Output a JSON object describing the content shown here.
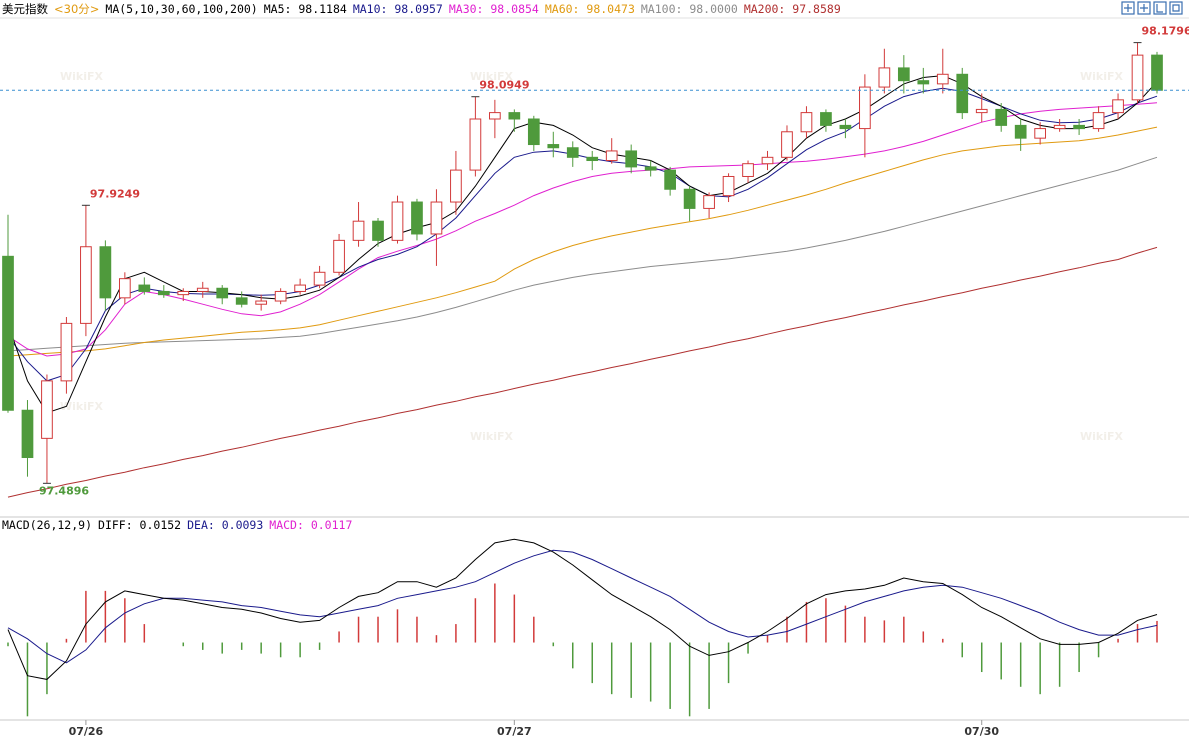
{
  "chart_data": {
    "type": "candlestick",
    "title": "美元指数",
    "period": "<30分>",
    "ma_params": "MA(5,10,30,60,100,200)",
    "macd_params": "MACD(26,12,9)",
    "watermark": "WikiFX",
    "categories": [
      null,
      null,
      null,
      null,
      "07/26",
      null,
      null,
      null,
      null,
      null,
      null,
      null,
      null,
      null,
      null,
      null,
      null,
      null,
      null,
      null,
      null,
      null,
      null,
      null,
      null,
      null,
      "07/27",
      null,
      null,
      null,
      null,
      null,
      null,
      null,
      null,
      null,
      null,
      null,
      null,
      null,
      null,
      null,
      null,
      null,
      null,
      null,
      null,
      null,
      null,
      null,
      "07/30",
      null,
      null,
      null,
      null,
      null,
      null,
      null,
      null,
      null
    ],
    "ylim": [
      97.44,
      98.215
    ],
    "up_color": "#d23a3a",
    "down_color": "#4f9a3c",
    "candles": {
      "open": [
        97.845,
        97.604,
        97.56,
        97.65,
        97.74,
        97.86,
        97.78,
        97.8,
        97.79,
        97.785,
        97.79,
        97.795,
        97.78,
        97.77,
        97.775,
        97.79,
        97.8,
        97.82,
        97.87,
        97.9,
        97.87,
        97.93,
        97.88,
        97.93,
        97.98,
        98.06,
        98.07,
        98.06,
        98.02,
        98.015,
        98.0,
        97.995,
        98.01,
        97.985,
        97.98,
        97.95,
        97.92,
        97.94,
        97.97,
        97.99,
        98.0,
        98.04,
        98.07,
        98.05,
        98.045,
        98.11,
        98.14,
        98.12,
        98.115,
        98.13,
        98.07,
        98.075,
        98.05,
        98.03,
        98.045,
        98.05,
        98.045,
        98.07,
        98.09,
        98.16
      ],
      "high": [
        97.91,
        97.62,
        97.66,
        97.75,
        97.9249,
        97.87,
        97.82,
        97.812,
        97.8,
        97.795,
        97.805,
        97.8,
        97.79,
        97.785,
        97.795,
        97.81,
        97.83,
        97.88,
        97.93,
        97.905,
        97.94,
        97.935,
        97.95,
        98.01,
        98.0949,
        98.09,
        98.075,
        98.065,
        98.04,
        98.025,
        98.01,
        98.03,
        98.02,
        97.995,
        97.985,
        97.955,
        97.945,
        97.975,
        97.995,
        98.01,
        98.05,
        98.08,
        98.075,
        98.06,
        98.13,
        98.17,
        98.16,
        98.14,
        98.17,
        98.14,
        98.1,
        98.085,
        98.06,
        98.055,
        98.06,
        98.06,
        98.08,
        98.1,
        98.1796,
        98.165
      ],
      "low": [
        97.6,
        97.5,
        97.4896,
        97.63,
        97.72,
        97.76,
        97.77,
        97.785,
        97.78,
        97.775,
        97.78,
        97.77,
        97.765,
        97.76,
        97.77,
        97.785,
        97.795,
        97.815,
        97.86,
        97.86,
        97.865,
        97.87,
        97.83,
        97.91,
        97.97,
        98.03,
        98.04,
        98.01,
        98.0,
        97.985,
        97.98,
        97.99,
        97.975,
        97.97,
        97.94,
        97.9,
        97.905,
        97.93,
        97.96,
        97.98,
        97.995,
        98.03,
        98.04,
        98.03,
        98.0,
        98.1,
        98.1,
        98.1,
        98.1,
        98.06,
        98.055,
        98.04,
        98.01,
        98.02,
        98.04,
        98.035,
        98.04,
        98.06,
        98.085,
        98.1
      ],
      "close": [
        97.604,
        97.53,
        97.65,
        97.74,
        97.86,
        97.78,
        97.81,
        97.79,
        97.785,
        97.79,
        97.795,
        97.78,
        97.77,
        97.775,
        97.79,
        97.8,
        97.82,
        97.87,
        97.9,
        97.87,
        97.93,
        97.88,
        97.93,
        97.98,
        98.06,
        98.07,
        98.06,
        98.02,
        98.015,
        98.0,
        97.995,
        98.01,
        97.985,
        97.98,
        97.95,
        97.92,
        97.94,
        97.97,
        97.99,
        98.0,
        98.04,
        98.07,
        98.05,
        98.045,
        98.11,
        98.14,
        98.12,
        98.115,
        98.13,
        98.07,
        98.075,
        98.05,
        98.03,
        98.045,
        98.05,
        98.045,
        98.07,
        98.09,
        98.16,
        98.105
      ],
      "high_labels": [
        null,
        null,
        null,
        null,
        "97.9249",
        null,
        null,
        null,
        null,
        null,
        null,
        null,
        null,
        null,
        null,
        null,
        null,
        null,
        null,
        null,
        null,
        null,
        null,
        null,
        "98.0949",
        null,
        null,
        null,
        null,
        null,
        null,
        null,
        null,
        null,
        null,
        null,
        null,
        null,
        null,
        null,
        null,
        null,
        null,
        null,
        null,
        null,
        null,
        null,
        null,
        null,
        null,
        null,
        null,
        null,
        null,
        null,
        null,
        null,
        "98.1796",
        null
      ],
      "low_labels": [
        null,
        null,
        "97.4896",
        null,
        null,
        null,
        null,
        null,
        null,
        null,
        null,
        null,
        null,
        null,
        null,
        null,
        null,
        null,
        null,
        null,
        null,
        null,
        null,
        null,
        null,
        null,
        null,
        null,
        null,
        null,
        null,
        null,
        null,
        null,
        null,
        null,
        null,
        null,
        null,
        null,
        null,
        null,
        null,
        null,
        null,
        null,
        null,
        null,
        null,
        null,
        null,
        null,
        null,
        null,
        null,
        null,
        null,
        null,
        null,
        null
      ]
    },
    "series": [
      {
        "name": "MA5: 98.1184",
        "color": "#000000",
        "values": [
          97.74,
          97.65,
          97.6,
          97.61,
          97.68,
          97.75,
          97.81,
          97.82,
          97.805,
          97.79,
          97.79,
          97.788,
          97.785,
          97.78,
          97.778,
          97.783,
          97.792,
          97.812,
          97.84,
          97.865,
          97.88,
          97.89,
          97.898,
          97.916,
          97.955,
          98.0,
          98.045,
          98.055,
          98.05,
          98.035,
          98.015,
          98.005,
          98.0,
          97.995,
          97.98,
          97.955,
          97.94,
          97.945,
          97.96,
          97.975,
          98.0,
          98.03,
          98.05,
          98.06,
          98.075,
          98.095,
          98.115,
          98.125,
          98.128,
          98.115,
          98.095,
          98.08,
          98.06,
          98.05,
          98.045,
          98.045,
          98.05,
          98.06,
          98.085,
          98.1184
        ]
      },
      {
        "name": "MA10: 98.0957",
        "color": "#1a1a8c",
        "values": [
          97.72,
          97.68,
          97.65,
          97.66,
          97.7,
          97.76,
          97.785,
          97.795,
          97.79,
          97.787,
          97.786,
          97.786,
          97.785,
          97.784,
          97.785,
          97.79,
          97.8,
          97.812,
          97.828,
          97.84,
          97.848,
          97.86,
          97.88,
          97.905,
          97.94,
          97.975,
          98.0,
          98.008,
          98.01,
          98.005,
          97.998,
          97.993,
          97.99,
          97.985,
          97.975,
          97.955,
          97.94,
          97.938,
          97.95,
          97.968,
          97.99,
          98.012,
          98.028,
          98.04,
          98.06,
          98.08,
          98.095,
          98.103,
          98.108,
          98.103,
          98.092,
          98.08,
          98.068,
          98.058,
          98.054,
          98.055,
          98.06,
          98.07,
          98.085,
          98.0957
        ]
      },
      {
        "name": "MA30: 98.0854",
        "color": "#e020d0",
        "values": [
          97.72,
          97.7,
          97.689,
          97.692,
          97.7,
          97.73,
          97.77,
          97.79,
          97.785,
          97.778,
          97.77,
          97.762,
          97.755,
          97.752,
          97.758,
          97.77,
          97.785,
          97.805,
          97.825,
          97.843,
          97.853,
          97.862,
          97.872,
          97.885,
          97.9,
          97.912,
          97.925,
          97.94,
          97.952,
          97.962,
          97.97,
          97.975,
          97.978,
          97.98,
          97.982,
          97.985,
          97.986,
          97.987,
          97.988,
          97.99,
          97.992,
          97.994,
          97.997,
          98.001,
          98.005,
          98.01,
          98.017,
          98.025,
          98.035,
          98.045,
          98.055,
          98.062,
          98.068,
          98.072,
          98.075,
          98.077,
          98.079,
          98.081,
          98.083,
          98.0854
        ]
      },
      {
        "name": "MA60: 98.0473",
        "color": "#e09a10",
        "values": [
          97.689,
          97.691,
          97.693,
          97.695,
          97.697,
          97.7,
          97.705,
          97.71,
          97.714,
          97.717,
          97.72,
          97.723,
          97.726,
          97.728,
          97.73,
          97.733,
          97.738,
          97.745,
          97.752,
          97.759,
          97.766,
          97.773,
          97.78,
          97.788,
          97.797,
          97.806,
          97.825,
          97.84,
          97.852,
          97.862,
          97.87,
          97.877,
          97.883,
          97.889,
          97.894,
          97.899,
          97.904,
          97.91,
          97.917,
          97.925,
          97.933,
          97.941,
          97.95,
          97.96,
          97.969,
          97.978,
          97.987,
          97.996,
          98.004,
          98.01,
          98.014,
          98.018,
          98.02,
          98.022,
          98.024,
          98.026,
          98.03,
          98.035,
          98.041,
          98.0473
        ]
      },
      {
        "name": "MA100: 98.0000",
        "color": "#8c8c8c",
        "values": [
          97.697,
          97.699,
          97.701,
          97.703,
          97.705,
          97.707,
          97.709,
          97.71,
          97.711,
          97.712,
          97.713,
          97.714,
          97.715,
          97.716,
          97.718,
          97.72,
          97.724,
          97.729,
          97.734,
          97.739,
          97.744,
          97.75,
          97.757,
          97.765,
          97.774,
          97.783,
          97.792,
          97.8,
          97.806,
          97.812,
          97.817,
          97.821,
          97.825,
          97.829,
          97.832,
          97.835,
          97.838,
          97.841,
          97.845,
          97.849,
          97.853,
          97.858,
          97.864,
          97.87,
          97.877,
          97.884,
          97.892,
          97.9,
          97.908,
          97.916,
          97.924,
          97.932,
          97.94,
          97.948,
          97.956,
          97.964,
          97.972,
          97.98,
          97.99,
          98.0
        ]
      },
      {
        "name": "MA200: 97.8589",
        "color": "#b03030",
        "values": [
          97.468,
          97.475,
          97.481,
          97.488,
          97.494,
          97.501,
          97.507,
          97.514,
          97.52,
          97.527,
          97.533,
          97.54,
          97.546,
          97.553,
          97.56,
          97.566,
          97.573,
          97.579,
          97.586,
          97.592,
          97.599,
          97.605,
          97.612,
          97.618,
          97.625,
          97.631,
          97.638,
          97.645,
          97.651,
          97.658,
          97.664,
          97.671,
          97.677,
          97.684,
          97.69,
          97.697,
          97.703,
          97.71,
          97.716,
          97.723,
          97.73,
          97.736,
          97.743,
          97.749,
          97.756,
          97.762,
          97.769,
          97.775,
          97.782,
          97.788,
          97.795,
          97.801,
          97.808,
          97.814,
          97.821,
          97.827,
          97.834,
          97.84,
          97.85,
          97.8589
        ]
      }
    ],
    "macd": {
      "ylim": [
        -0.042,
        0.061
      ],
      "diff": {
        "name": "DIFF: 0.0152",
        "color": "#000000",
        "values": [
          0.007,
          -0.018,
          -0.02,
          -0.01,
          0.01,
          0.022,
          0.028,
          0.026,
          0.024,
          0.023,
          0.021,
          0.019,
          0.018,
          0.016,
          0.013,
          0.011,
          0.012,
          0.019,
          0.025,
          0.027,
          0.033,
          0.033,
          0.03,
          0.035,
          0.045,
          0.054,
          0.056,
          0.054,
          0.049,
          0.042,
          0.034,
          0.026,
          0.02,
          0.014,
          0.007,
          -0.002,
          -0.007,
          -0.005,
          0.0,
          0.006,
          0.013,
          0.021,
          0.026,
          0.028,
          0.029,
          0.031,
          0.035,
          0.033,
          0.032,
          0.026,
          0.019,
          0.014,
          0.008,
          0.002,
          -0.001,
          -0.001,
          0.0,
          0.005,
          0.012,
          0.0152
        ]
      },
      "dea": {
        "name": "DEA: 0.0093",
        "color": "#1a1a8c",
        "values": [
          0.008,
          0.002,
          -0.006,
          -0.011,
          -0.004,
          0.008,
          0.016,
          0.021,
          0.024,
          0.024,
          0.023,
          0.022,
          0.02,
          0.019,
          0.017,
          0.015,
          0.014,
          0.016,
          0.018,
          0.02,
          0.024,
          0.026,
          0.028,
          0.03,
          0.033,
          0.038,
          0.043,
          0.047,
          0.05,
          0.049,
          0.045,
          0.04,
          0.035,
          0.03,
          0.025,
          0.018,
          0.011,
          0.006,
          0.003,
          0.004,
          0.006,
          0.01,
          0.014,
          0.018,
          0.022,
          0.025,
          0.028,
          0.03,
          0.031,
          0.03,
          0.027,
          0.024,
          0.02,
          0.016,
          0.011,
          0.007,
          0.004,
          0.004,
          0.007,
          0.0093
        ]
      },
      "hist": {
        "name": "MACD: 0.0117",
        "color": "#e020d0",
        "values": [
          -0.002,
          -0.04,
          -0.028,
          0.002,
          0.028,
          0.028,
          0.024,
          0.01,
          0.0,
          -0.002,
          -0.004,
          -0.006,
          -0.004,
          -0.006,
          -0.008,
          -0.008,
          -0.004,
          0.006,
          0.014,
          0.014,
          0.018,
          0.014,
          0.004,
          0.01,
          0.024,
          0.032,
          0.026,
          0.014,
          -0.002,
          -0.014,
          -0.022,
          -0.028,
          -0.03,
          -0.032,
          -0.036,
          -0.04,
          -0.036,
          -0.022,
          -0.006,
          0.004,
          0.014,
          0.022,
          0.024,
          0.02,
          0.014,
          0.012,
          0.014,
          0.006,
          0.002,
          -0.008,
          -0.016,
          -0.02,
          -0.024,
          -0.028,
          -0.024,
          -0.016,
          -0.008,
          0.002,
          0.01,
          0.0117
        ]
      }
    }
  }
}
